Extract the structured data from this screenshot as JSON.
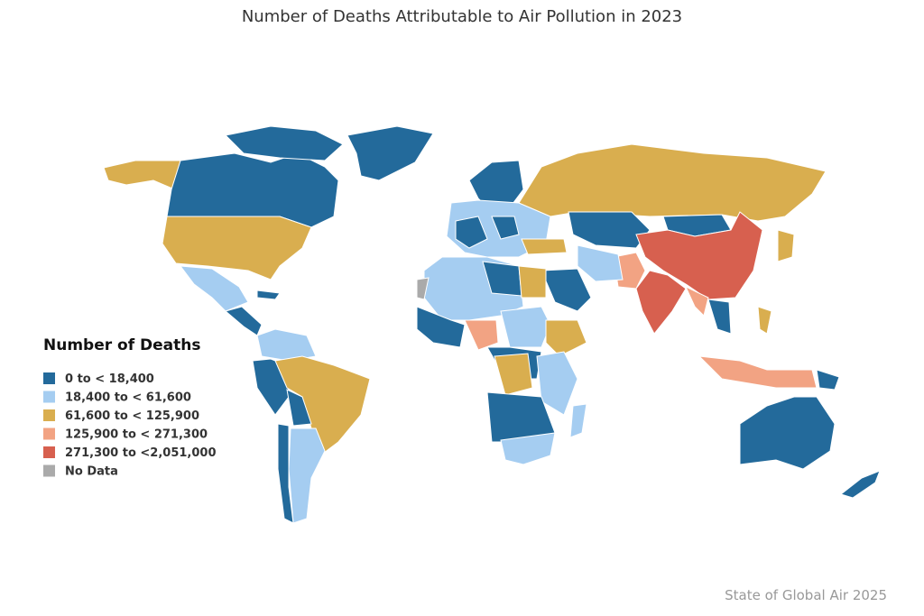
{
  "header": {
    "title": "Number of Deaths Attributable to Air Pollution in 2023"
  },
  "legend": {
    "title": "Number of Deaths",
    "items": [
      {
        "label": "0 to < 18,400",
        "color": "#236a9b"
      },
      {
        "label": "18,400 to < 61,600",
        "color": "#a5cdf1"
      },
      {
        "label": "61,600 to < 125,900",
        "color": "#d9ae4f"
      },
      {
        "label": "125,900 to < 271,300",
        "color": "#f2a383"
      },
      {
        "label": "271,300 to <2,051,000",
        "color": "#d7604f"
      },
      {
        "label": "No Data",
        "color": "#aaaaaa"
      }
    ]
  },
  "footer": {
    "source": "State of Global Air 2025"
  }
}
